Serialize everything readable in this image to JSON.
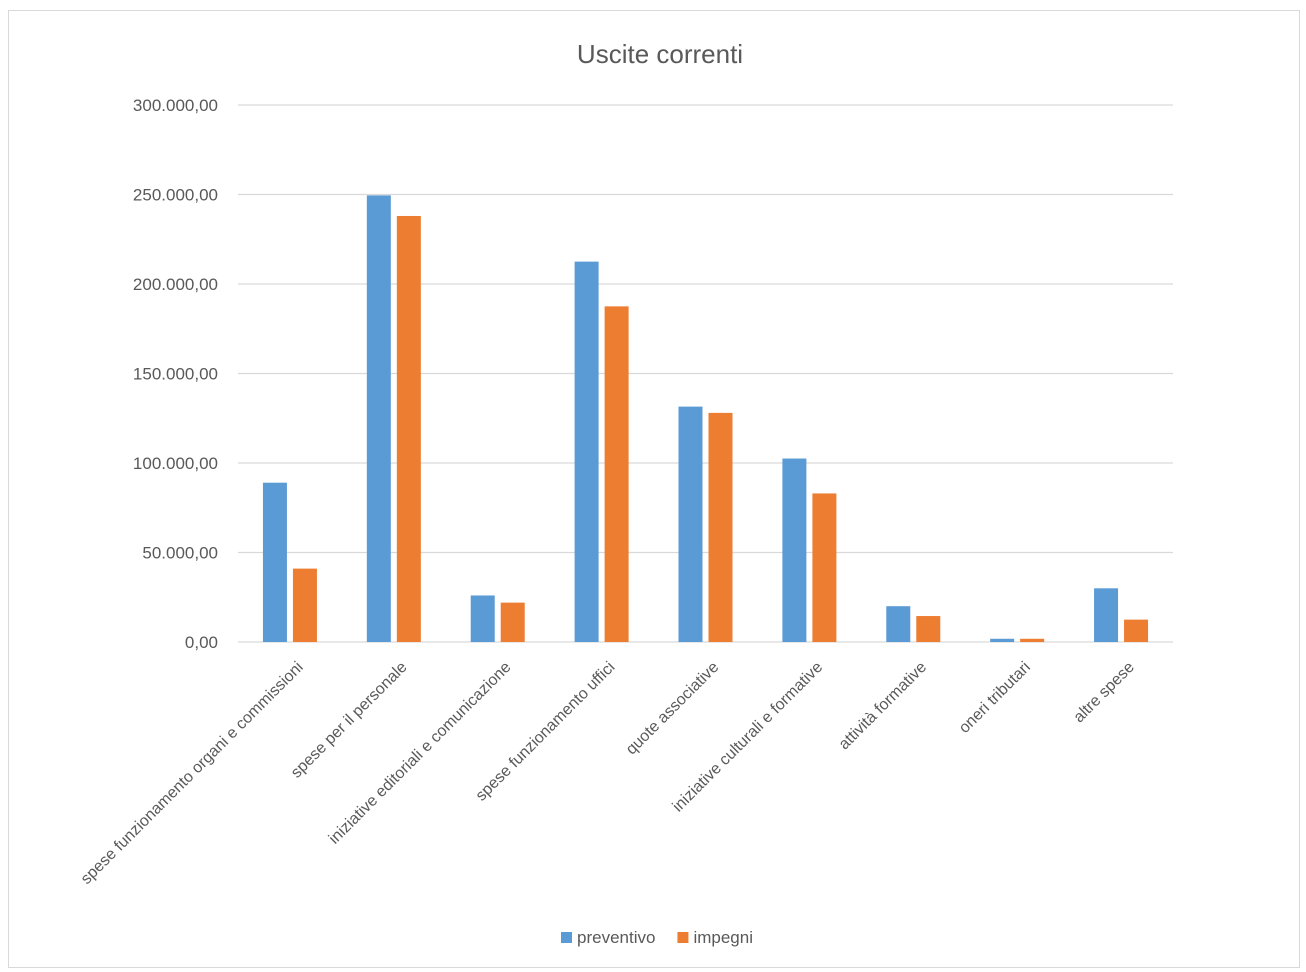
{
  "chart_data": {
    "type": "bar",
    "title": "Uscite correnti",
    "xlabel": "",
    "ylabel": "",
    "ylim": [
      0,
      300000
    ],
    "ytick_values": [
      0,
      50000,
      100000,
      150000,
      200000,
      250000,
      300000
    ],
    "ytick_labels": [
      "0,00",
      "50.000,00",
      "100.000,00",
      "150.000,00",
      "200.000,00",
      "250.000,00",
      "300.000,00"
    ],
    "grid": true,
    "legend_position": "bottom",
    "categories": [
      "spese funzionamento organi e commissioni",
      "spese per il personale",
      "iniziative editoriali e comunicazione",
      "spese funzionamento uffici",
      "quote associative",
      "iniziative culturali e formative",
      "attività formative",
      "oneri tributari",
      "altre spese"
    ],
    "series": [
      {
        "name": "preventivo",
        "color": "#5b9bd5",
        "values": [
          89000,
          249500,
          26000,
          212500,
          131500,
          102500,
          20000,
          1800,
          30000
        ]
      },
      {
        "name": "impegni",
        "color": "#ed7d31",
        "values": [
          41000,
          238000,
          22000,
          187500,
          128000,
          83000,
          14500,
          1800,
          12500
        ]
      }
    ]
  }
}
